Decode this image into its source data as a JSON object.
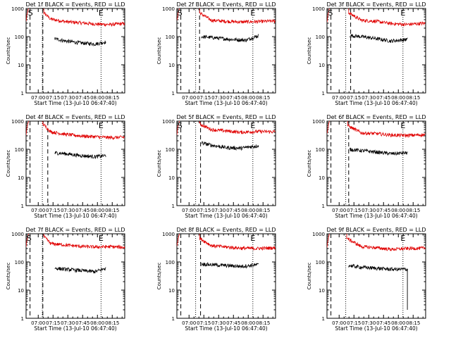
{
  "chart_data": [
    {
      "type": "line",
      "title": "Det 1f BLACK = Events, RED = LLD",
      "xlabel": "Start Time (13-Jul-10 06:47:40)",
      "ylabel": "Counts/sec",
      "x_tick_labels": [
        "07:00",
        "07:15",
        "07:30",
        "07:45",
        "08:00",
        "08:15"
      ],
      "y_tick_labels": [
        "1",
        "10",
        "100",
        "1000"
      ],
      "yscale": "log",
      "ylim": [
        1,
        1000
      ],
      "xlim_minutes_after_start": [
        0,
        100
      ],
      "markers": [
        {
          "label": "E",
          "x_minutes": 76
        },
        {
          "label": "S",
          "x_minutes": 4.5
        }
      ],
      "dashed_lines_minutes": [
        4,
        17
      ],
      "dotted_lines_minutes": [
        16.5,
        76
      ],
      "red_lld_level": 300,
      "black_events_level": 70,
      "red_range": [
        18,
        100
      ],
      "black_range": [
        29,
        81
      ],
      "series": [
        {
          "name": "BLACK = Events",
          "color": "#000000",
          "x_minutes": [
            29,
            40,
            55,
            70,
            81
          ],
          "values": [
            85,
            70,
            60,
            55,
            65
          ]
        },
        {
          "name": "RED = LLD",
          "color": "#e00000",
          "x_minutes": [
            18,
            25,
            40,
            55,
            70,
            85,
            100
          ],
          "values": [
            700,
            420,
            340,
            310,
            280,
            270,
            290
          ]
        }
      ]
    },
    {
      "type": "line",
      "title": "Det 2f BLACK = Events, RED = LLD",
      "xlabel": "Start Time (13-Jul-10 06:47:40)",
      "ylabel": "Counts/sec",
      "x_tick_labels": [
        "07:00",
        "07:15",
        "07:30",
        "07:45",
        "08:00",
        "08:15"
      ],
      "y_tick_labels": [
        "1",
        "10",
        "100",
        "1000"
      ],
      "yscale": "log",
      "ylim": [
        1,
        1000
      ],
      "markers": [
        {
          "label": "E",
          "x_minutes": 77
        },
        {
          "label": "S",
          "x_minutes": 3
        }
      ],
      "dashed_lines_minutes": [
        4,
        23
      ],
      "dotted_lines_minutes": [
        19,
        77
      ],
      "red_lld_level": 350,
      "black_events_level": 85,
      "red_range": [
        23,
        100
      ],
      "black_range": [
        25,
        83
      ],
      "series": [
        {
          "name": "BLACK = Events",
          "color": "#000000",
          "x_minutes": [
            25,
            40,
            55,
            70,
            83
          ],
          "values": [
            100,
            90,
            80,
            75,
            110
          ]
        },
        {
          "name": "RED = LLD",
          "color": "#e00000",
          "x_minutes": [
            23,
            35,
            50,
            65,
            80,
            100
          ],
          "values": [
            700,
            380,
            350,
            330,
            340,
            360
          ]
        }
      ]
    },
    {
      "type": "line",
      "title": "Det 3f BLACK = Events, RED = LLD",
      "xlabel": "Start Time (13-Jul-10 06:47:40)",
      "ylabel": "Counts/sec",
      "x_tick_labels": [
        "07:00",
        "07:15",
        "07:30",
        "07:45",
        "08:00",
        "08:15"
      ],
      "y_tick_labels": [
        "1",
        "10",
        "100",
        "1000"
      ],
      "yscale": "log",
      "ylim": [
        1,
        1000
      ],
      "markers": [
        {
          "label": "E",
          "x_minutes": 77
        },
        {
          "label": "S",
          "x_minutes": 3.5
        }
      ],
      "dashed_lines_minutes": [
        4,
        24
      ],
      "dotted_lines_minutes": [
        19,
        77
      ],
      "red_lld_level": 300,
      "black_events_level": 80,
      "red_range": [
        22,
        100
      ],
      "black_range": [
        23,
        82
      ],
      "series": [
        {
          "name": "BLACK = Events",
          "color": "#000000",
          "x_minutes": [
            23,
            35,
            50,
            65,
            82
          ],
          "values": [
            110,
            100,
            85,
            70,
            80
          ]
        },
        {
          "name": "RED = LLD",
          "color": "#e00000",
          "x_minutes": [
            22,
            35,
            50,
            65,
            80,
            100
          ],
          "values": [
            700,
            380,
            350,
            290,
            270,
            300
          ]
        }
      ]
    },
    {
      "type": "line",
      "title": "Det 4f BLACK = Events, RED = LLD",
      "xlabel": "Start Time (13-Jul-10 06:47:40)",
      "ylabel": "Counts/sec",
      "x_tick_labels": [
        "07:00",
        "07:15",
        "07:30",
        "07:45",
        "08:00",
        "08:15"
      ],
      "y_tick_labels": [
        "1",
        "10",
        "100",
        "1000"
      ],
      "yscale": "log",
      "ylim": [
        1,
        1000
      ],
      "markers": [
        {
          "label": "E",
          "x_minutes": 76
        }
      ],
      "dashed_lines_minutes": [
        4,
        22
      ],
      "dotted_lines_minutes": [
        16.5,
        76
      ],
      "red_lld_level": 300,
      "black_events_level": 65,
      "red_range": [
        17,
        100
      ],
      "black_range": [
        29,
        81
      ],
      "series": [
        {
          "name": "BLACK = Events",
          "color": "#000000",
          "x_minutes": [
            29,
            40,
            55,
            70,
            81
          ],
          "values": [
            75,
            70,
            60,
            55,
            60
          ]
        },
        {
          "name": "RED = LLD",
          "color": "#e00000",
          "x_minutes": [
            17,
            25,
            40,
            55,
            70,
            85,
            100
          ],
          "values": [
            800,
            420,
            340,
            300,
            280,
            260,
            270
          ]
        }
      ]
    },
    {
      "type": "line",
      "title": "Det 5f BLACK = Events, RED = LLD",
      "xlabel": "Start Time (13-Jul-10 06:47:40)",
      "ylabel": "Counts/sec",
      "x_tick_labels": [
        "07:00",
        "07:15",
        "07:30",
        "07:45",
        "08:00",
        "08:15"
      ],
      "y_tick_labels": [
        "1",
        "10",
        "100",
        "1000"
      ],
      "yscale": "log",
      "ylim": [
        1,
        1000
      ],
      "markers": [
        {
          "label": "E",
          "x_minutes": 77
        },
        {
          "label": "S",
          "x_minutes": 3
        }
      ],
      "dashed_lines_minutes": [
        4,
        24
      ],
      "dotted_lines_minutes": [
        19,
        77
      ],
      "red_lld_level": 400,
      "black_events_level": 120,
      "red_range": [
        23,
        100
      ],
      "black_range": [
        25,
        83
      ],
      "series": [
        {
          "name": "BLACK = Events",
          "color": "#000000",
          "x_minutes": [
            25,
            35,
            50,
            65,
            83
          ],
          "values": [
            170,
            140,
            115,
            110,
            135
          ]
        },
        {
          "name": "RED = LLD",
          "color": "#e00000",
          "x_minutes": [
            23,
            35,
            50,
            65,
            80,
            100
          ],
          "values": [
            800,
            500,
            450,
            400,
            430,
            420
          ]
        }
      ]
    },
    {
      "type": "line",
      "title": "Det 6f BLACK = Events, RED = LLD",
      "xlabel": "Start Time (13-Jul-10 06:47:40)",
      "ylabel": "Counts/sec",
      "x_tick_labels": [
        "07:00",
        "07:15",
        "07:30",
        "07:45",
        "08:00",
        "08:15"
      ],
      "y_tick_labels": [
        "1",
        "10",
        "100",
        "1000"
      ],
      "yscale": "log",
      "ylim": [
        1,
        1000
      ],
      "markers": [
        {
          "label": "E",
          "x_minutes": 77
        }
      ],
      "dashed_lines_minutes": [
        4,
        22
      ],
      "dotted_lines_minutes": [
        19,
        77
      ],
      "red_lld_level": 320,
      "black_events_level": 80,
      "red_range": [
        21,
        100
      ],
      "black_range": [
        23,
        82
      ],
      "series": [
        {
          "name": "BLACK = Events",
          "color": "#000000",
          "x_minutes": [
            23,
            35,
            50,
            65,
            82
          ],
          "values": [
            100,
            90,
            80,
            70,
            75
          ]
        },
        {
          "name": "RED = LLD",
          "color": "#e00000",
          "x_minutes": [
            21,
            35,
            50,
            65,
            80,
            100
          ],
          "values": [
            700,
            380,
            360,
            320,
            310,
            330
          ]
        }
      ]
    },
    {
      "type": "line",
      "title": "Det 7f BLACK = Events, RED = LLD",
      "xlabel": "Start Time (13-Jul-10 06:47:40)",
      "ylabel": "Counts/sec",
      "x_tick_labels": [
        "07:00",
        "07:15",
        "07:30",
        "07:45",
        "08:00",
        "08:15"
      ],
      "y_tick_labels": [
        "1",
        "10",
        "100",
        "1000"
      ],
      "yscale": "log",
      "ylim": [
        1,
        1000
      ],
      "markers": [
        {
          "label": "E",
          "x_minutes": 76
        },
        {
          "label": "S",
          "x_minutes": 3
        }
      ],
      "dashed_lines_minutes": [
        4,
        17
      ],
      "dotted_lines_minutes": [
        16.5,
        76
      ],
      "red_lld_level": 350,
      "black_events_level": 50,
      "red_range": [
        18,
        100
      ],
      "black_range": [
        29,
        81
      ],
      "series": [
        {
          "name": "BLACK = Events",
          "color": "#000000",
          "x_minutes": [
            29,
            40,
            55,
            70,
            81
          ],
          "values": [
            60,
            55,
            50,
            45,
            60
          ]
        },
        {
          "name": "RED = LLD",
          "color": "#e00000",
          "x_minutes": [
            18,
            25,
            40,
            55,
            70,
            85,
            100
          ],
          "values": [
            800,
            450,
            400,
            360,
            340,
            350,
            330
          ]
        }
      ]
    },
    {
      "type": "line",
      "title": "Det 8f BLACK = Events, RED = LLD",
      "xlabel": "Start Time (13-Jul-10 06:47:40)",
      "ylabel": "Counts/sec",
      "x_tick_labels": [
        "07:00",
        "07:15",
        "07:30",
        "07:45",
        "08:00",
        "08:15"
      ],
      "y_tick_labels": [
        "1",
        "10",
        "100",
        "1000"
      ],
      "yscale": "log",
      "ylim": [
        1,
        1000
      ],
      "markers": [
        {
          "label": "E",
          "x_minutes": 77
        }
      ],
      "dashed_lines_minutes": [
        4,
        24
      ],
      "dotted_lines_minutes": [
        19,
        77
      ],
      "red_lld_level": 320,
      "black_events_level": 75,
      "red_range": [
        23,
        100
      ],
      "black_range": [
        25,
        83
      ],
      "series": [
        {
          "name": "BLACK = Events",
          "color": "#000000",
          "x_minutes": [
            25,
            35,
            50,
            65,
            83
          ],
          "values": [
            85,
            80,
            75,
            70,
            80
          ]
        },
        {
          "name": "RED = LLD",
          "color": "#e00000",
          "x_minutes": [
            23,
            35,
            50,
            65,
            80,
            100
          ],
          "values": [
            700,
            380,
            340,
            310,
            300,
            320
          ]
        }
      ]
    },
    {
      "type": "line",
      "title": "Det 9f BLACK = Events, RED = LLD",
      "xlabel": "Start Time (13-Jul-10 06:47:40)",
      "ylabel": "Counts/sec",
      "x_tick_labels": [
        "07:00",
        "07:15",
        "07:30",
        "07:45",
        "08:00",
        "08:15"
      ],
      "y_tick_labels": [
        "1",
        "10",
        "100",
        "1000"
      ],
      "yscale": "log",
      "ylim": [
        1,
        1000
      ],
      "markers": [
        {
          "label": "E",
          "x_minutes": 77
        }
      ],
      "dashed_lines_minutes": [
        4
      ],
      "dotted_lines_minutes": [
        19,
        77
      ],
      "red_lld_level": 300,
      "black_events_level": 60,
      "red_range": [
        20,
        100
      ],
      "black_range": [
        22,
        82
      ],
      "series": [
        {
          "name": "BLACK = Events",
          "color": "#000000",
          "x_minutes": [
            22,
            35,
            50,
            65,
            80,
            82
          ],
          "values": [
            75,
            65,
            60,
            55,
            55,
            2
          ]
        },
        {
          "name": "RED = LLD",
          "color": "#e00000",
          "x_minutes": [
            20,
            35,
            50,
            65,
            80,
            100
          ],
          "values": [
            700,
            350,
            320,
            280,
            300,
            310
          ]
        }
      ]
    }
  ]
}
